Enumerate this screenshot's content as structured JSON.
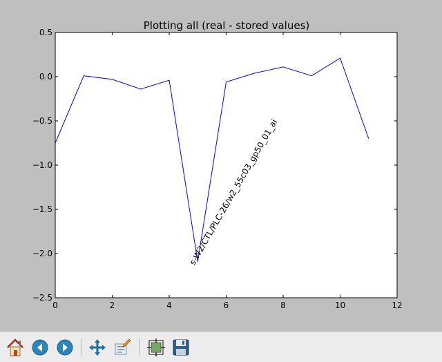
{
  "chart_data": {
    "type": "line",
    "title": "Plotting all (real - stored values)",
    "xlabel": "",
    "ylabel": "",
    "xlim": [
      0,
      12
    ],
    "ylim": [
      -2.5,
      0.5
    ],
    "xticks": [
      "0",
      "2",
      "4",
      "6",
      "8",
      "10",
      "12"
    ],
    "yticks": [
      "0.5",
      "0.0",
      "−0.5",
      "−1.0",
      "−1.5",
      "−2.0",
      "−2.5"
    ],
    "grid": false,
    "series": [
      {
        "color": "#0000ff",
        "x": [
          0,
          1,
          2,
          3,
          4,
          5,
          6,
          7,
          8,
          9,
          10,
          11
        ],
        "y": [
          -0.75,
          0.01,
          -0.03,
          -0.14,
          -0.04,
          -2.09,
          -0.06,
          0.04,
          0.11,
          0.01,
          0.21,
          -0.7
        ]
      }
    ],
    "annotations": [
      {
        "text": "s-W2/CTL/PLC-26/w2_55c03_gp50_01_ai",
        "x": 5,
        "y": -2.09,
        "rotation": 60
      }
    ]
  },
  "toolbar": {
    "buttons": [
      {
        "name": "home-button",
        "icon": "home-icon"
      },
      {
        "name": "back-button",
        "icon": "arrow-left-icon"
      },
      {
        "name": "forward-button",
        "icon": "arrow-right-icon"
      },
      {
        "name": "pan-button",
        "icon": "move-icon"
      },
      {
        "name": "zoom-button",
        "icon": "zoom-rect-icon"
      },
      {
        "name": "subplots-button",
        "icon": "subplots-icon"
      },
      {
        "name": "save-button",
        "icon": "floppy-disk-icon"
      }
    ]
  }
}
